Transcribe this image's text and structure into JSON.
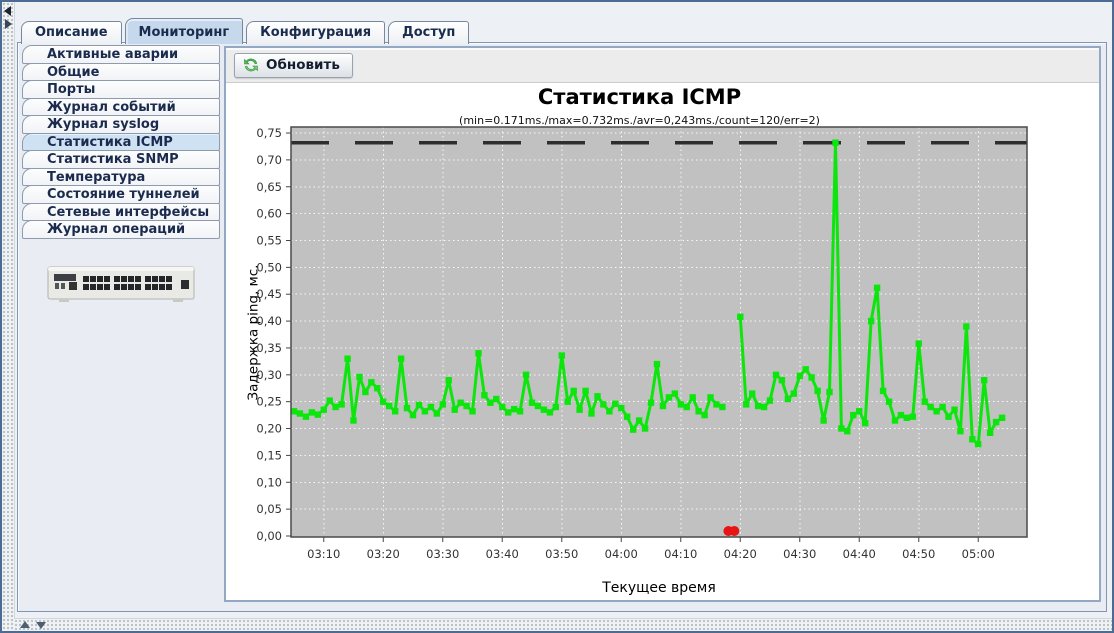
{
  "tabs": {
    "selected_index": 1,
    "items": [
      {
        "name": "description",
        "label": "Описание"
      },
      {
        "name": "monitoring",
        "label": "Мониторинг"
      },
      {
        "name": "configuration",
        "label": "Конфигурация"
      },
      {
        "name": "access",
        "label": "Доступ"
      }
    ]
  },
  "sidebar": {
    "selected_index": 5,
    "items": [
      {
        "name": "active-alarms",
        "label": "Активные аварии"
      },
      {
        "name": "general",
        "label": "Общие"
      },
      {
        "name": "ports",
        "label": "Порты"
      },
      {
        "name": "event-log",
        "label": "Журнал событий"
      },
      {
        "name": "syslog-log",
        "label": "Журнал syslog"
      },
      {
        "name": "icmp-stats",
        "label": "Статистика ICMP"
      },
      {
        "name": "snmp-stats",
        "label": "Статистика SNMP"
      },
      {
        "name": "temperature",
        "label": "Температура"
      },
      {
        "name": "tunnels-state",
        "label": "Состояние туннелей"
      },
      {
        "name": "network-interfaces",
        "label": "Сетевые интерфейсы"
      },
      {
        "name": "operations-log",
        "label": "Журнал операций"
      }
    ]
  },
  "toolbar": {
    "refresh_label": "Обновить"
  },
  "chart_data": {
    "type": "line",
    "title": "Статистика ICMP",
    "subtitle": "(min=0.171ms./max=0.732ms./avr=0,243ms./count=120/err=2)",
    "stats": {
      "min_ms": 0.171,
      "max_ms": 0.732,
      "avg_ms": 0.243,
      "count": 120,
      "errors": 2
    },
    "xlabel": "Текущее время",
    "ylabel": "Задержка ping, мс.",
    "ylim": [
      0,
      0.75
    ],
    "grid": true,
    "plot_bg": "#c1c1c1",
    "gridline_color": "#f8f8f8",
    "y_tick_labels": [
      "0,00",
      "0,05",
      "0,10",
      "0,15",
      "0,20",
      "0,25",
      "0,30",
      "0,35",
      "0,40",
      "0,45",
      "0,50",
      "0,55",
      "0,60",
      "0,65",
      "0,70",
      "0,75"
    ],
    "x_ticks": [
      "03:10",
      "03:20",
      "03:30",
      "03:40",
      "03:50",
      "04:00",
      "04:10",
      "04:20",
      "04:30",
      "04:40",
      "04:50",
      "05:00"
    ],
    "start_time": "03:05",
    "interval_minutes": 1,
    "max_line": {
      "value": 0.732,
      "color": "#2e2e2e",
      "style": "dashed"
    },
    "error_points": {
      "times": [
        "04:18",
        "04:19"
      ],
      "indices": [
        73,
        74
      ],
      "value": 0,
      "color": "#e61414"
    },
    "series": [
      {
        "name": "ping-delay",
        "color": "#0ce60c",
        "values": [
          0.232,
          0.228,
          0.222,
          0.23,
          0.226,
          0.235,
          0.252,
          0.24,
          0.245,
          0.33,
          0.215,
          0.296,
          0.268,
          0.286,
          0.275,
          0.25,
          0.242,
          0.232,
          0.33,
          0.238,
          0.225,
          0.244,
          0.232,
          0.24,
          0.228,
          0.245,
          0.29,
          0.235,
          0.248,
          0.242,
          0.232,
          0.34,
          0.262,
          0.248,
          0.255,
          0.24,
          0.23,
          0.236,
          0.232,
          0.3,
          0.248,
          0.242,
          0.235,
          0.23,
          0.24,
          0.336,
          0.25,
          0.27,
          0.235,
          0.27,
          0.228,
          0.26,
          0.245,
          0.232,
          0.246,
          0.238,
          0.222,
          0.198,
          0.215,
          0.2,
          0.248,
          0.32,
          0.242,
          0.258,
          0.265,
          0.245,
          0.24,
          0.258,
          0.232,
          0.225,
          0.258,
          0.245,
          0.24,
          null,
          null,
          0.408,
          0.245,
          0.265,
          0.242,
          0.24,
          0.252,
          0.3,
          0.29,
          0.255,
          0.265,
          0.298,
          0.31,
          0.295,
          0.27,
          0.215,
          0.268,
          0.732,
          0.2,
          0.195,
          0.225,
          0.232,
          0.21,
          0.4,
          0.462,
          0.27,
          0.25,
          0.215,
          0.225,
          0.22,
          0.222,
          0.358,
          0.25,
          0.24,
          0.232,
          0.24,
          0.222,
          0.235,
          0.195,
          0.39,
          0.18,
          0.171,
          0.29,
          0.192,
          0.212,
          0.22
        ]
      }
    ]
  },
  "colors": {
    "window_border": "#4c6b93",
    "selected_tab_bg": "#c6d8eb",
    "panel_border": "#93a9c3",
    "series_green": "#0ce60c",
    "error_red": "#e61414"
  }
}
